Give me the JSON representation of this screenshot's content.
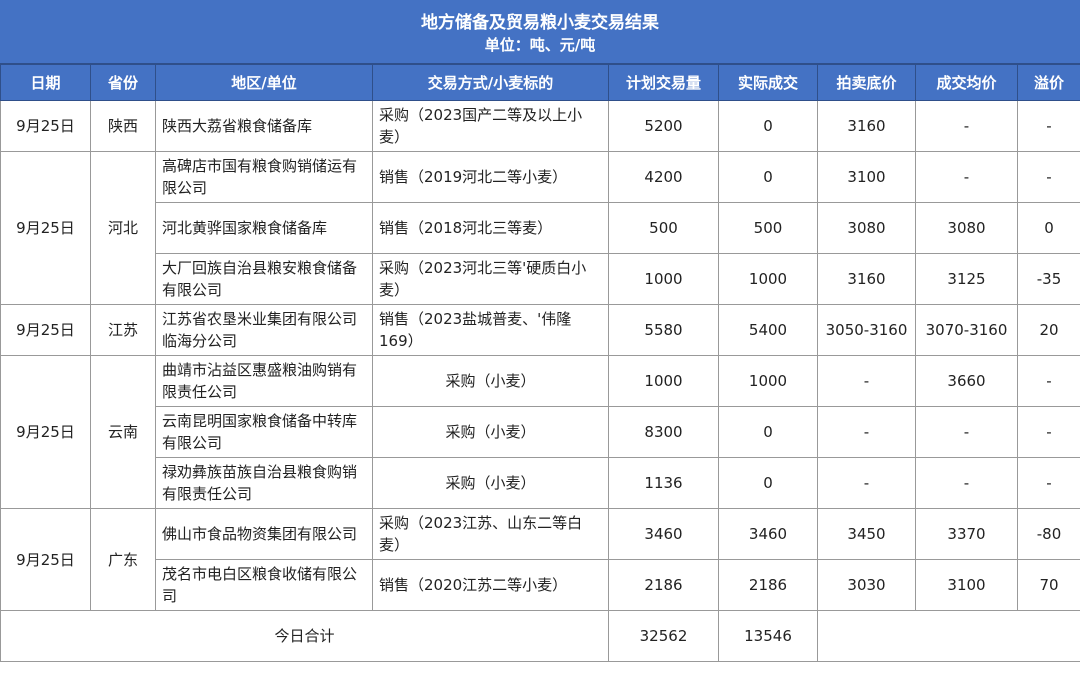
{
  "title": "地方储备及贸易粮小麦交易结果",
  "unit": "单位：吨、元/吨",
  "headers": [
    "日期",
    "省份",
    "地区/单位",
    "交易方式/小麦标的",
    "计划交易量",
    "实际成交",
    "拍卖底价",
    "成交均价",
    "溢价"
  ],
  "groups": [
    {
      "date": "9月25日",
      "province": "陕西",
      "rows": [
        [
          "陕西大荔省粮食储备库",
          "采购（2023国产二等及以上小麦）",
          "5200",
          "0",
          "3160",
          "-",
          "-"
        ]
      ]
    },
    {
      "date": "9月25日",
      "province": "河北",
      "rows": [
        [
          "高碑店市国有粮食购销储运有限公司",
          "销售（2019河北二等小麦）",
          "4200",
          "0",
          "3100",
          "-",
          "-"
        ],
        [
          "河北黄骅国家粮食储备库",
          "销售（2018河北三等麦）",
          "500",
          "500",
          "3080",
          "3080",
          "0"
        ],
        [
          "大厂回族自治县粮安粮食储备有限公司",
          "采购（2023河北三等'硬质白小麦）",
          "1000",
          "1000",
          "3160",
          "3125",
          "-35"
        ]
      ]
    },
    {
      "date": "9月25日",
      "province": "江苏",
      "rows": [
        [
          "江苏省农垦米业集团有限公司临海分公司",
          "销售（2023盐城普麦、'伟隆169）",
          "5580",
          "5400",
          "3050-3160",
          "3070-3160",
          "20"
        ]
      ]
    },
    {
      "date": "9月25日",
      "province": "云南",
      "rows": [
        [
          "曲靖市沾益区惠盛粮油购销有限责任公司",
          "采购（小麦）",
          "1000",
          "1000",
          "-",
          "3660",
          "-"
        ],
        [
          "云南昆明国家粮食储备中转库有限公司",
          "采购（小麦）",
          "8300",
          "0",
          "-",
          "-",
          "-"
        ],
        [
          "禄劝彝族苗族自治县粮食购销有限责任公司",
          "采购（小麦）",
          "1136",
          "0",
          "-",
          "-",
          "-"
        ]
      ]
    },
    {
      "date": "9月25日",
      "province": "广东",
      "rows": [
        [
          "佛山市食品物资集团有限公司",
          "采购（2023江苏、山东二等白麦）",
          "3460",
          "3460",
          "3450",
          "3370",
          "-80"
        ],
        [
          "茂名市电白区粮食收储有限公司",
          "销售（2020江苏二等小麦）",
          "2186",
          "2186",
          "3030",
          "3100",
          "70"
        ]
      ]
    }
  ],
  "total": {
    "label": "今日合计",
    "plan": "32562",
    "actual": "13546"
  },
  "colors": {
    "header": "#4472c4"
  }
}
